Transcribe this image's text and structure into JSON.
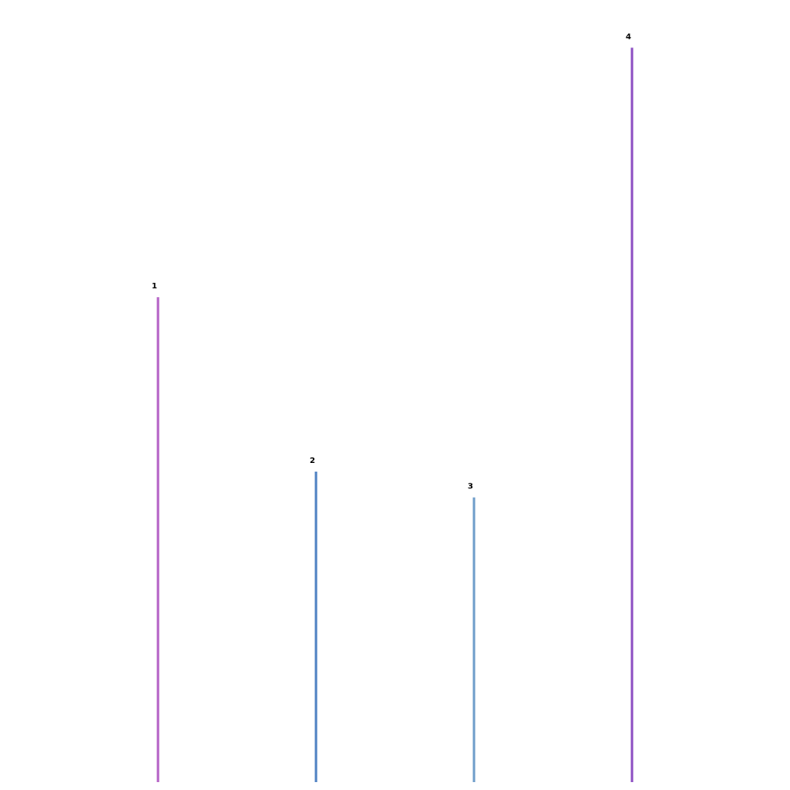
{
  "chart_data": {
    "type": "bar",
    "categories": [
      "1",
      "2",
      "3",
      "4"
    ],
    "values": [
      620,
      397,
      364,
      939
    ],
    "colors": [
      "#b461c6",
      "#4f82c3",
      "#6f9dca",
      "#8c4fc3"
    ],
    "ylim": [
      0,
      1000
    ],
    "grid": false,
    "legend": "none"
  }
}
